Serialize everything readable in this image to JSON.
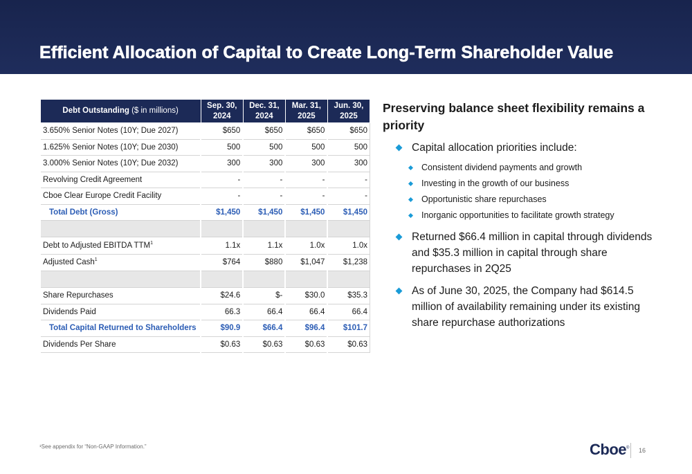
{
  "slide": {
    "title": "Efficient Allocation of Capital to Create Long-Term Shareholder Value",
    "page_number": "16",
    "footnote": "¹See appendix for “Non-GAAP Information.”",
    "logo_text": "Cboe",
    "logo_mark": "®"
  },
  "table": {
    "header_label_bold": "Debt Outstanding",
    "header_label_rest": " ($ in millions)",
    "columns": [
      {
        "line1": "Sep. 30,",
        "line2": "2024"
      },
      {
        "line1": "Dec. 31,",
        "line2": "2024"
      },
      {
        "line1": "Mar. 31,",
        "line2": "2025"
      },
      {
        "line1": "Jun. 30,",
        "line2": "2025"
      }
    ],
    "rows": [
      {
        "label": "3.650% Senior Notes (10Y; Due 2027)",
        "values": [
          "$650",
          "$650",
          "$650",
          "$650"
        ]
      },
      {
        "label": "1.625% Senior Notes (10Y; Due 2030)",
        "values": [
          "500",
          "500",
          "500",
          "500"
        ]
      },
      {
        "label": "3.000% Senior Notes (10Y; Due 2032)",
        "values": [
          "300",
          "300",
          "300",
          "300"
        ]
      },
      {
        "label": "Revolving Credit Agreement",
        "values": [
          "-",
          "-",
          "-",
          "-"
        ]
      },
      {
        "label": "Cboe Clear Europe Credit Facility",
        "values": [
          "-",
          "-",
          "-",
          "-"
        ]
      },
      {
        "label": "Total Debt (Gross)",
        "values": [
          "$1,450",
          "$1,450",
          "$1,450",
          "$1,450"
        ]
      },
      {
        "label": "Debt to Adjusted EBITDA TTM",
        "sup": "1",
        "values": [
          "1.1x",
          "1.1x",
          "1.0x",
          "1.0x"
        ]
      },
      {
        "label": "Adjusted Cash",
        "sup": "1",
        "values": [
          "$764",
          "$880",
          "$1,047",
          "$1,238"
        ]
      },
      {
        "label": "Share Repurchases",
        "values": [
          "$24.6",
          "$-",
          "$30.0",
          "$35.3"
        ]
      },
      {
        "label": "Dividends Paid",
        "values": [
          "66.3",
          "66.4",
          "66.4",
          "66.4"
        ]
      },
      {
        "label": "Total Capital Returned to Shareholders",
        "values": [
          "$90.9",
          "$66.4",
          "$96.4",
          "$101.7"
        ]
      },
      {
        "label": "Dividends Per Share",
        "values": [
          "$0.63",
          "$0.63",
          "$0.63",
          "$0.63"
        ]
      }
    ]
  },
  "commentary": {
    "heading": "Preserving balance sheet flexibility remains a priority",
    "bullets": [
      "Capital allocation priorities include:",
      "Returned $66.4 million in capital through dividends and $35.3 million in capital through share repurchases in 2Q25",
      "As of June 30, 2025, the Company had $614.5 million of availability remaining under its existing share repurchase authorizations"
    ],
    "sub_bullets": [
      "Consistent dividend payments and growth",
      "Investing in the growth of our business",
      "Opportunistic share repurchases",
      "Inorganic opportunities to facilitate growth strategy"
    ]
  },
  "colors": {
    "header_navy": "#1c2a57",
    "total_blue": "#2c5db5",
    "bullet_cyan": "#1a9bd7",
    "spacer_gray": "#e7e7e7"
  }
}
